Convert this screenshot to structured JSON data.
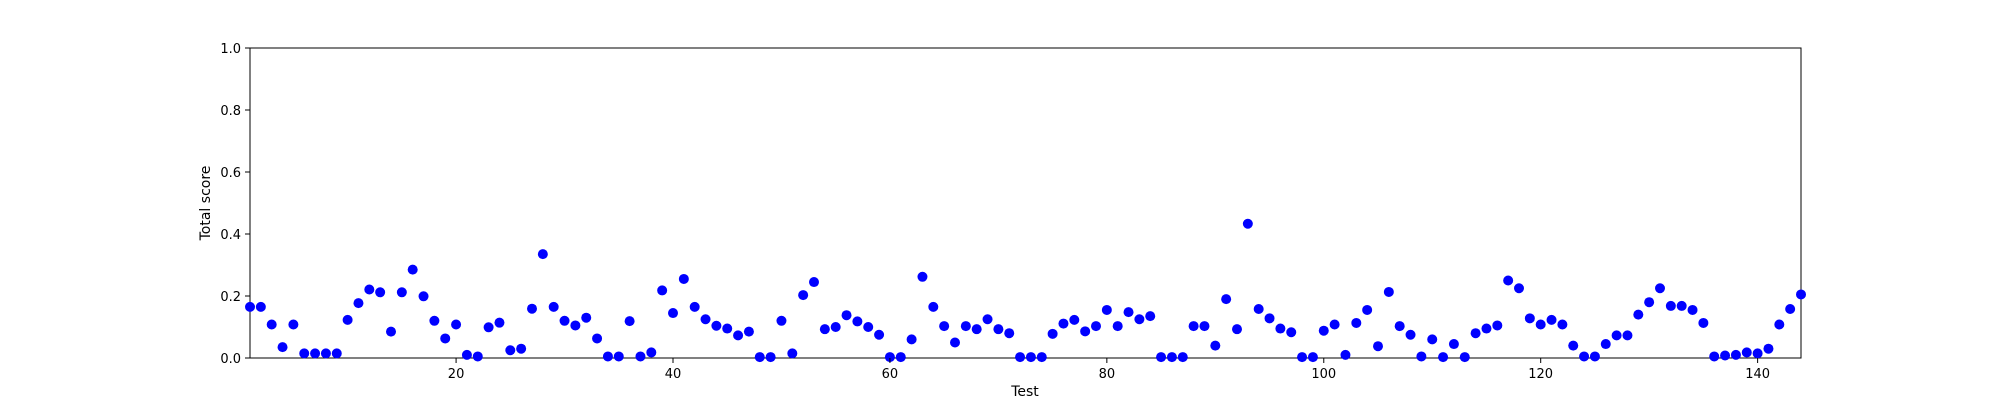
{
  "chart_data": {
    "type": "scatter",
    "title": "",
    "xlabel": "Test",
    "ylabel": "Total score",
    "xlim": [
      1,
      144
    ],
    "ylim": [
      0.0,
      1.0
    ],
    "xticks": [
      20,
      40,
      60,
      80,
      100,
      120,
      140
    ],
    "xtick_labels": [
      "20",
      "40",
      "60",
      "80",
      "100",
      "120",
      "140"
    ],
    "yticks": [
      0.0,
      0.2,
      0.4,
      0.6,
      0.8,
      1.0
    ],
    "ytick_labels": [
      "0.0",
      "0.2",
      "0.4",
      "0.6",
      "0.8",
      "1.0"
    ],
    "grid": false,
    "marker_color": "#0000ff",
    "series": [
      {
        "x": [
          1,
          2,
          3,
          4,
          5,
          6,
          7,
          8,
          9,
          10,
          11,
          12,
          13,
          14,
          15,
          16,
          17,
          18,
          19,
          20,
          21,
          22,
          23,
          24,
          25,
          26,
          27,
          28,
          29,
          30,
          31,
          32,
          33,
          34,
          35,
          36,
          37,
          38,
          39,
          40,
          41,
          42,
          43,
          44,
          45,
          46,
          47,
          48,
          49,
          50,
          51,
          52,
          53,
          54,
          55,
          56,
          57,
          58,
          59,
          60,
          61,
          62,
          63,
          64,
          65,
          66,
          67,
          68,
          69,
          70,
          71,
          72,
          73,
          74,
          75,
          76,
          77,
          78,
          79,
          80,
          81,
          82,
          83,
          84,
          85,
          86,
          87,
          88,
          89,
          90,
          91,
          92,
          93,
          94,
          95,
          96,
          97,
          98,
          99,
          100,
          101,
          102,
          103,
          104,
          105,
          106,
          107,
          108,
          109,
          110,
          111,
          112,
          113,
          114,
          115,
          116,
          117,
          118,
          119,
          120,
          121,
          122,
          123,
          124,
          125,
          126,
          127,
          128,
          129,
          130,
          131,
          132,
          133,
          134,
          135,
          136,
          137,
          138,
          139,
          140,
          141,
          142,
          143,
          144
        ],
        "y": [
          0.165,
          0.165,
          0.108,
          0.035,
          0.108,
          0.015,
          0.015,
          0.015,
          0.015,
          0.123,
          0.177,
          0.221,
          0.212,
          0.085,
          0.212,
          0.285,
          0.199,
          0.12,
          0.063,
          0.108,
          0.01,
          0.005,
          0.099,
          0.114,
          0.025,
          0.03,
          0.159,
          0.335,
          0.165,
          0.12,
          0.105,
          0.13,
          0.063,
          0.005,
          0.005,
          0.119,
          0.005,
          0.018,
          0.218,
          0.145,
          0.255,
          0.165,
          0.125,
          0.104,
          0.095,
          0.073,
          0.085,
          0.003,
          0.003,
          0.12,
          0.015,
          0.203,
          0.245,
          0.093,
          0.1,
          0.138,
          0.118,
          0.1,
          0.075,
          0.003,
          0.003,
          0.06,
          0.262,
          0.165,
          0.103,
          0.05,
          0.103,
          0.093,
          0.125,
          0.093,
          0.08,
          0.003,
          0.003,
          0.003,
          0.078,
          0.111,
          0.123,
          0.086,
          0.103,
          0.155,
          0.103,
          0.148,
          0.125,
          0.135,
          0.003,
          0.003,
          0.003,
          0.103,
          0.103,
          0.04,
          0.19,
          0.093,
          0.433,
          0.158,
          0.128,
          0.095,
          0.083,
          0.003,
          0.003,
          0.088,
          0.108,
          0.01,
          0.113,
          0.155,
          0.038,
          0.213,
          0.103,
          0.075,
          0.005,
          0.06,
          0.003,
          0.045,
          0.003,
          0.08,
          0.095,
          0.105,
          0.25,
          0.225,
          0.128,
          0.108,
          0.123,
          0.108,
          0.04,
          0.005,
          0.005,
          0.045,
          0.073,
          0.073,
          0.14,
          0.18,
          0.225,
          0.168,
          0.168,
          0.155,
          0.113,
          0.005,
          0.008,
          0.01,
          0.018,
          0.015,
          0.03,
          0.108,
          0.158,
          0.205
        ]
      }
    ]
  }
}
